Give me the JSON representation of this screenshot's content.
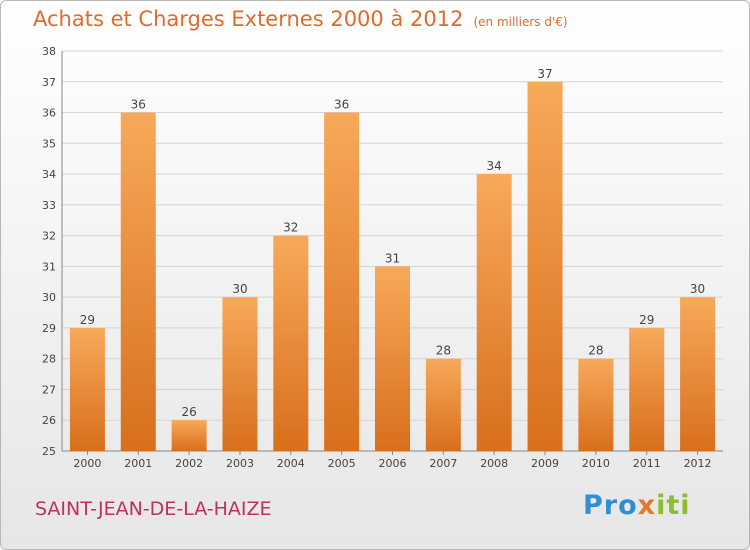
{
  "chart_data": {
    "type": "bar",
    "title": "Achats et Charges Externes 2000 à 2012",
    "unit_note": "(en milliers d'€)",
    "categories": [
      "2000",
      "2001",
      "2002",
      "2003",
      "2004",
      "2005",
      "2006",
      "2007",
      "2008",
      "2009",
      "2010",
      "2011",
      "2012"
    ],
    "values": [
      29,
      36,
      26,
      30,
      32,
      36,
      31,
      28,
      34,
      37,
      28,
      29,
      30
    ],
    "ylim": [
      25,
      38
    ],
    "yticks": [
      25,
      26,
      27,
      28,
      29,
      30,
      31,
      32,
      33,
      34,
      35,
      36,
      37,
      38
    ],
    "grid": true,
    "xlabel": "",
    "ylabel": "",
    "bar_color_light": "#f7a95a",
    "bar_color_dark": "#d86f1c"
  },
  "footer": {
    "commune": "SAINT-JEAN-DE-LA-HAIZE",
    "logo_text": "Proxiti"
  }
}
